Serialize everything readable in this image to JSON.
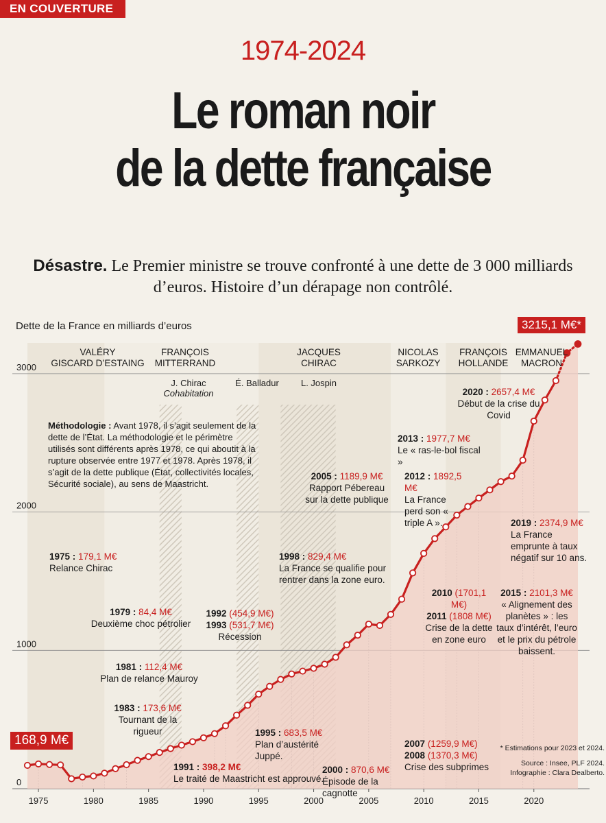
{
  "header": {
    "section_tag": "EN COUVERTURE",
    "years": "1974-2024",
    "title_line1": "Le roman noir",
    "title_line2": "de la dette française",
    "lede_bold": "Désastre.",
    "lede_text": " Le Premier ministre se trouve confronté à une dette de 3 000 milliards d’euros. Histoire d’un dérapage non contrôlé."
  },
  "colors": {
    "accent": "#c8201f",
    "area": "#f2cfc6",
    "line": "#c8201f"
  },
  "presidents": [
    {
      "line1": "Valéry",
      "line2": "Giscard d’Estaing"
    },
    {
      "line1": "François",
      "line2": "Mitterrand"
    },
    {
      "line1": "Jacques",
      "line2": "Chirac"
    },
    {
      "line1": "Nicolas",
      "line2": "Sarkozy"
    },
    {
      "line1": "François",
      "line2": "Hollande"
    },
    {
      "line1": "Emmanuel",
      "line2": "Macron"
    }
  ],
  "subperiods": [
    {
      "name": "J. Chirac",
      "note": "Cohabitation"
    },
    {
      "name": "É. Balladur",
      "note": ""
    },
    {
      "name": "L. Jospin",
      "note": ""
    }
  ],
  "methodology": {
    "label": "Méthodologie :",
    "text": " Avant 1978, il s’agit seulement de la dette de l’État. La méthodologie et le périmètre utilisés sont différents après 1978, ce qui aboutit à la rupture observée entre 1977 et 1978. Après 1978, il s’agit de la dette publique (État, collectivités locales, Sécurité sociale), au sens de Maastricht."
  },
  "annotations": [
    {
      "id": "1975",
      "year": "1975 :",
      "value": "179,1 M€",
      "text": "Relance Chirac"
    },
    {
      "id": "1979",
      "year": "1979 :",
      "value": "84,4 M€",
      "text": "Deuxième choc pétrolier"
    },
    {
      "id": "1981",
      "year": "1981 :",
      "value": "112,4 M€",
      "text": "Plan de relance Mauroy"
    },
    {
      "id": "1983",
      "year": "1983 :",
      "value": "173,6 M€",
      "text": "Tournant de la rigueur"
    },
    {
      "id": "1991",
      "year": "1991 :",
      "value": "398,2 M€",
      "text": "Le traité de Maastricht est approuvé."
    },
    {
      "id": "1992",
      "year": "1992",
      "value": "(454,9 M€)",
      "year2": "1993",
      "value2": "(531,7 M€)",
      "text": "Récession"
    },
    {
      "id": "1995",
      "year": "1995 :",
      "value": "683,5 M€",
      "text": "Plan d’austérité Juppé."
    },
    {
      "id": "1998",
      "year": "1998 :",
      "value": "829,4 M€",
      "text": "La France se qualifie pour rentrer dans la zone euro."
    },
    {
      "id": "2000",
      "year": "2000 :",
      "value": "870,6 M€",
      "text": "Épisode de la cagnotte"
    },
    {
      "id": "2005",
      "year": "2005 :",
      "value": "1189,9 M€",
      "text": "Rapport Pébereau sur la dette publique"
    },
    {
      "id": "2007",
      "year": "2007",
      "value": "(1259,9 M€)",
      "year2": "2008",
      "value2": "(1370,3 M€)",
      "text": "Crise des subprimes"
    },
    {
      "id": "2010",
      "year": "2010",
      "value": "(1701,1 M€)",
      "year2": "2011",
      "value2": "(1808 M€)",
      "text": "Crise de la dette en zone euro"
    },
    {
      "id": "2012",
      "year": "2012 :",
      "value": "1892,5 M€",
      "text": "La France perd son « triple A »."
    },
    {
      "id": "2013",
      "year": "2013 :",
      "value": "1977,7 M€",
      "text": "Le « ras-le-bol fiscal »"
    },
    {
      "id": "2015",
      "year": "2015 :",
      "value": "2101,3 M€",
      "text": "« Alignement des planètes » : les taux d’intérêt, l’euro et le prix du pétrole baissent."
    },
    {
      "id": "2019",
      "year": "2019 :",
      "value": "2374,9 M€",
      "text": "La France emprunte à taux négatif sur 10 ans."
    },
    {
      "id": "2020",
      "year": "2020 :",
      "value": "2657,4 M€",
      "text": "Début de la crise du Covid"
    }
  ],
  "notes": {
    "estimations": "* Estimations pour 2023 et 2024.",
    "source": "Source : Insee, PLF 2024.",
    "infographie": "Infographie : Clara Dealberto."
  },
  "chart_data": {
    "type": "area",
    "title": "Dette de la France en milliards d’euros",
    "x": [
      1974,
      1975,
      1976,
      1977,
      1978,
      1979,
      1980,
      1981,
      1982,
      1983,
      1984,
      1985,
      1986,
      1987,
      1988,
      1989,
      1990,
      1991,
      1992,
      1993,
      1994,
      1995,
      1996,
      1997,
      1998,
      1999,
      2000,
      2001,
      2002,
      2003,
      2004,
      2005,
      2006,
      2007,
      2008,
      2009,
      2010,
      2011,
      2012,
      2013,
      2014,
      2015,
      2016,
      2017,
      2018,
      2019,
      2020,
      2021,
      2022,
      2023,
      2024
    ],
    "values": [
      168.9,
      179.1,
      175,
      172,
      72,
      84.4,
      92,
      112.4,
      145,
      173.6,
      205,
      232,
      262,
      290,
      315,
      340,
      368,
      398.2,
      454.9,
      531.7,
      603,
      683.5,
      740,
      790,
      829.4,
      850,
      870.6,
      900,
      950,
      1040,
      1110,
      1189.9,
      1180,
      1259.9,
      1370.3,
      1560,
      1701.1,
      1808,
      1892.5,
      1977.7,
      2040,
      2101.3,
      2160,
      2220,
      2260,
      2374.9,
      2657.4,
      2810,
      2950,
      3150,
      3215.1
    ],
    "estimated_from": 2023,
    "start_label": "168,9 M€",
    "end_label": "3215,1 M€*",
    "ylim": [
      0,
      3300
    ],
    "yticks": [
      "0",
      "1000",
      "2000",
      "3000"
    ],
    "xticks": [
      "1975",
      "1980",
      "1985",
      "1990",
      "1995",
      "2000",
      "2005",
      "2010",
      "2015",
      "2020"
    ],
    "grid": true
  }
}
